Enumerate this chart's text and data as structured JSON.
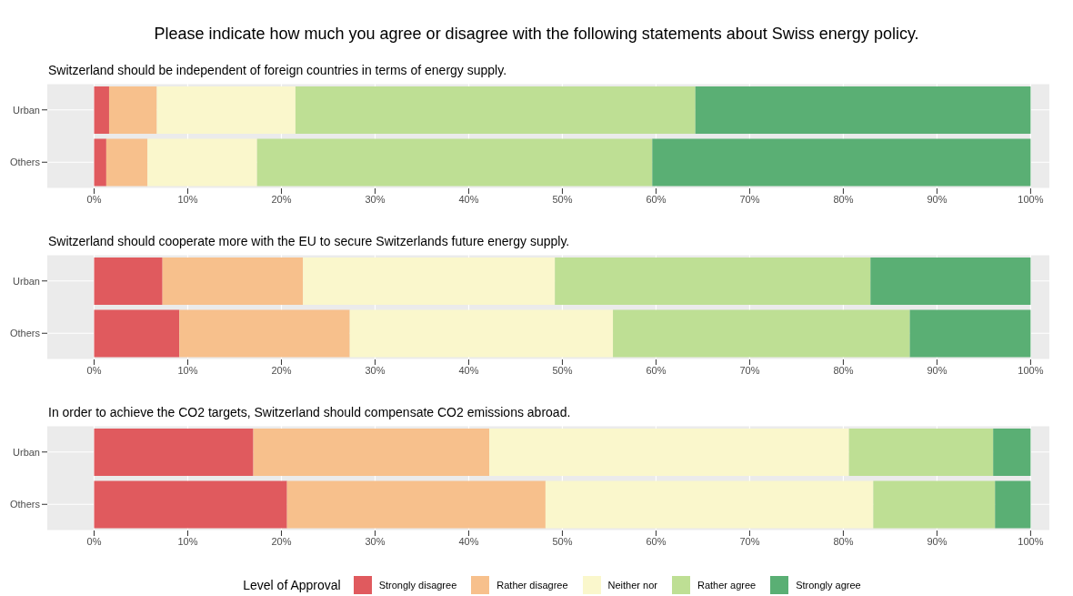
{
  "chart_data": [
    {
      "type": "bar",
      "title": "Please indicate how much you agree or disagree with the following statements about Swiss energy policy.",
      "subtitle": "Switzerland should be independent of foreign countries in terms of energy supply.",
      "orientation": "horizontal",
      "stacked": true,
      "categories": [
        "Urban",
        "Others"
      ],
      "xlim": [
        -5,
        102
      ],
      "xticks": [
        {
          "value": 0,
          "label": "0%"
        },
        {
          "value": 10,
          "label": "10%"
        },
        {
          "value": 20,
          "label": "20%"
        },
        {
          "value": 30,
          "label": "30%"
        },
        {
          "value": 40,
          "label": "40%"
        },
        {
          "value": 50,
          "label": "50%"
        },
        {
          "value": 60,
          "label": "60%"
        },
        {
          "value": 70,
          "label": "70%"
        },
        {
          "value": 80,
          "label": "80%"
        },
        {
          "value": 90,
          "label": "90%"
        },
        {
          "value": 100,
          "label": "100%"
        }
      ],
      "grid": true,
      "series": [
        {
          "color": "#e05a5e",
          "values": [
            1.6,
            1.3
          ]
        },
        {
          "color": "#f7c08c",
          "values": [
            5.1,
            4.4
          ]
        },
        {
          "color": "#faf7cc",
          "values": [
            14.8,
            11.7
          ]
        },
        {
          "color": "#bedf94",
          "values": [
            42.7,
            42.2
          ]
        },
        {
          "color": "#5aaf74",
          "values": [
            35.8,
            40.4
          ]
        }
      ]
    },
    {
      "type": "bar",
      "subtitle": "Switzerland should cooperate more with the EU to secure Switzerlands future energy supply.",
      "orientation": "horizontal",
      "stacked": true,
      "categories": [
        "Urban",
        "Others"
      ],
      "xlim": [
        -5,
        102
      ],
      "xticks": [
        {
          "value": 0,
          "label": "0%"
        },
        {
          "value": 10,
          "label": "10%"
        },
        {
          "value": 20,
          "label": "20%"
        },
        {
          "value": 30,
          "label": "30%"
        },
        {
          "value": 40,
          "label": "40%"
        },
        {
          "value": 50,
          "label": "50%"
        },
        {
          "value": 60,
          "label": "60%"
        },
        {
          "value": 70,
          "label": "70%"
        },
        {
          "value": 80,
          "label": "80%"
        },
        {
          "value": 90,
          "label": "90%"
        },
        {
          "value": 100,
          "label": "100%"
        }
      ],
      "grid": true,
      "series": [
        {
          "color": "#e05a5e",
          "values": [
            7.3,
            9.1
          ]
        },
        {
          "color": "#f7c08c",
          "values": [
            15.0,
            18.2
          ]
        },
        {
          "color": "#faf7cc",
          "values": [
            26.9,
            28.1
          ]
        },
        {
          "color": "#bedf94",
          "values": [
            33.7,
            31.7
          ]
        },
        {
          "color": "#5aaf74",
          "values": [
            17.1,
            12.9
          ]
        }
      ]
    },
    {
      "type": "bar",
      "subtitle": "In order to achieve the CO2 targets, Switzerland should compensate CO2 emissions abroad.",
      "orientation": "horizontal",
      "stacked": true,
      "categories": [
        "Urban",
        "Others"
      ],
      "xlim": [
        -5,
        102
      ],
      "xticks": [
        {
          "value": 0,
          "label": "0%"
        },
        {
          "value": 10,
          "label": "10%"
        },
        {
          "value": 20,
          "label": "20%"
        },
        {
          "value": 30,
          "label": "30%"
        },
        {
          "value": 40,
          "label": "40%"
        },
        {
          "value": 50,
          "label": "50%"
        },
        {
          "value": 60,
          "label": "60%"
        },
        {
          "value": 70,
          "label": "70%"
        },
        {
          "value": 80,
          "label": "80%"
        },
        {
          "value": 90,
          "label": "90%"
        },
        {
          "value": 100,
          "label": "100%"
        }
      ],
      "grid": true,
      "legend": "bottom",
      "legend_title": "Level of Approval",
      "series": [
        {
          "name": "Strongly disagree",
          "color": "#e05a5e",
          "values": [
            17.0,
            20.6
          ]
        },
        {
          "name": "Rather disagree",
          "color": "#f7c08c",
          "values": [
            25.2,
            27.6
          ]
        },
        {
          "name": "Neither nor",
          "color": "#faf7cc",
          "values": [
            38.4,
            35.0
          ]
        },
        {
          "name": "Rather agree",
          "color": "#bedf94",
          "values": [
            15.4,
            13.0
          ]
        },
        {
          "name": "Strongly agree",
          "color": "#5aaf74",
          "values": [
            4.0,
            3.8
          ]
        }
      ]
    }
  ]
}
